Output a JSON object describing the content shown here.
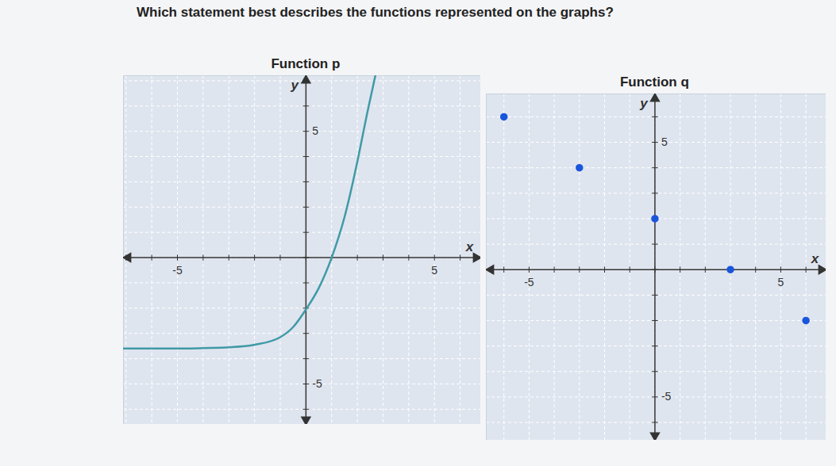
{
  "question": "Which statement best describes the functions represented on the graphs?",
  "chart_data": [
    {
      "type": "line",
      "title": "Function p",
      "x": [
        -7.1,
        -6,
        -5,
        -4,
        -3,
        -2,
        -1,
        -0.5,
        0,
        0.5,
        1,
        1.5,
        2,
        2.4,
        2.7
      ],
      "values": [
        -3.6,
        -3.6,
        -3.6,
        -3.58,
        -3.55,
        -3.45,
        -3.15,
        -2.75,
        -2.05,
        -1.2,
        0,
        1.6,
        3.8,
        5.8,
        7.2
      ],
      "color": "#3f9aa6",
      "x_label": "x",
      "y_label": "y",
      "xlim": [
        -7.1,
        6.8
      ],
      "ylim": [
        -6.6,
        7.2
      ],
      "xticks": [
        -5,
        5
      ],
      "yticks": [
        -5,
        5
      ],
      "grid": true
    },
    {
      "type": "scatter",
      "title": "Function q",
      "x": [
        -6,
        -3,
        0,
        3,
        6
      ],
      "values": [
        6,
        4,
        2,
        0,
        -2
      ],
      "color": "#1a56db",
      "marker": "circle",
      "x_label": "x",
      "y_label": "y",
      "xlim": [
        -6.7,
        6.8
      ],
      "ylim": [
        -6.7,
        6.9
      ],
      "xticks": [
        -5,
        5
      ],
      "yticks": [
        -5,
        5
      ],
      "grid": true
    }
  ]
}
